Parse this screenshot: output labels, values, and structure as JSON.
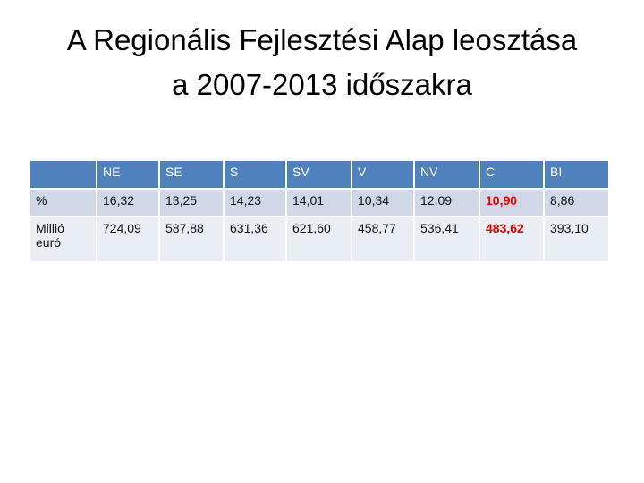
{
  "header": {
    "title": [
      "A Regionális Fejlesztési Alap leosztása",
      "a 2007-2013 időszakra"
    ]
  },
  "table": {
    "columns": [
      "NE",
      "SE",
      "S",
      "SV",
      "V",
      "NV",
      "C",
      "BI"
    ],
    "rows": [
      {
        "label": "%",
        "values": [
          "16,32",
          "13,25",
          "14,23",
          "14,01",
          "10,34",
          "12,09",
          "10,90",
          "8,86"
        ]
      },
      {
        "label": "Millió euró",
        "values": [
          "724,09",
          "587,88",
          "631,36",
          "621,60",
          "458,77",
          "536,41",
          "483,62",
          "393,10"
        ]
      }
    ]
  }
}
